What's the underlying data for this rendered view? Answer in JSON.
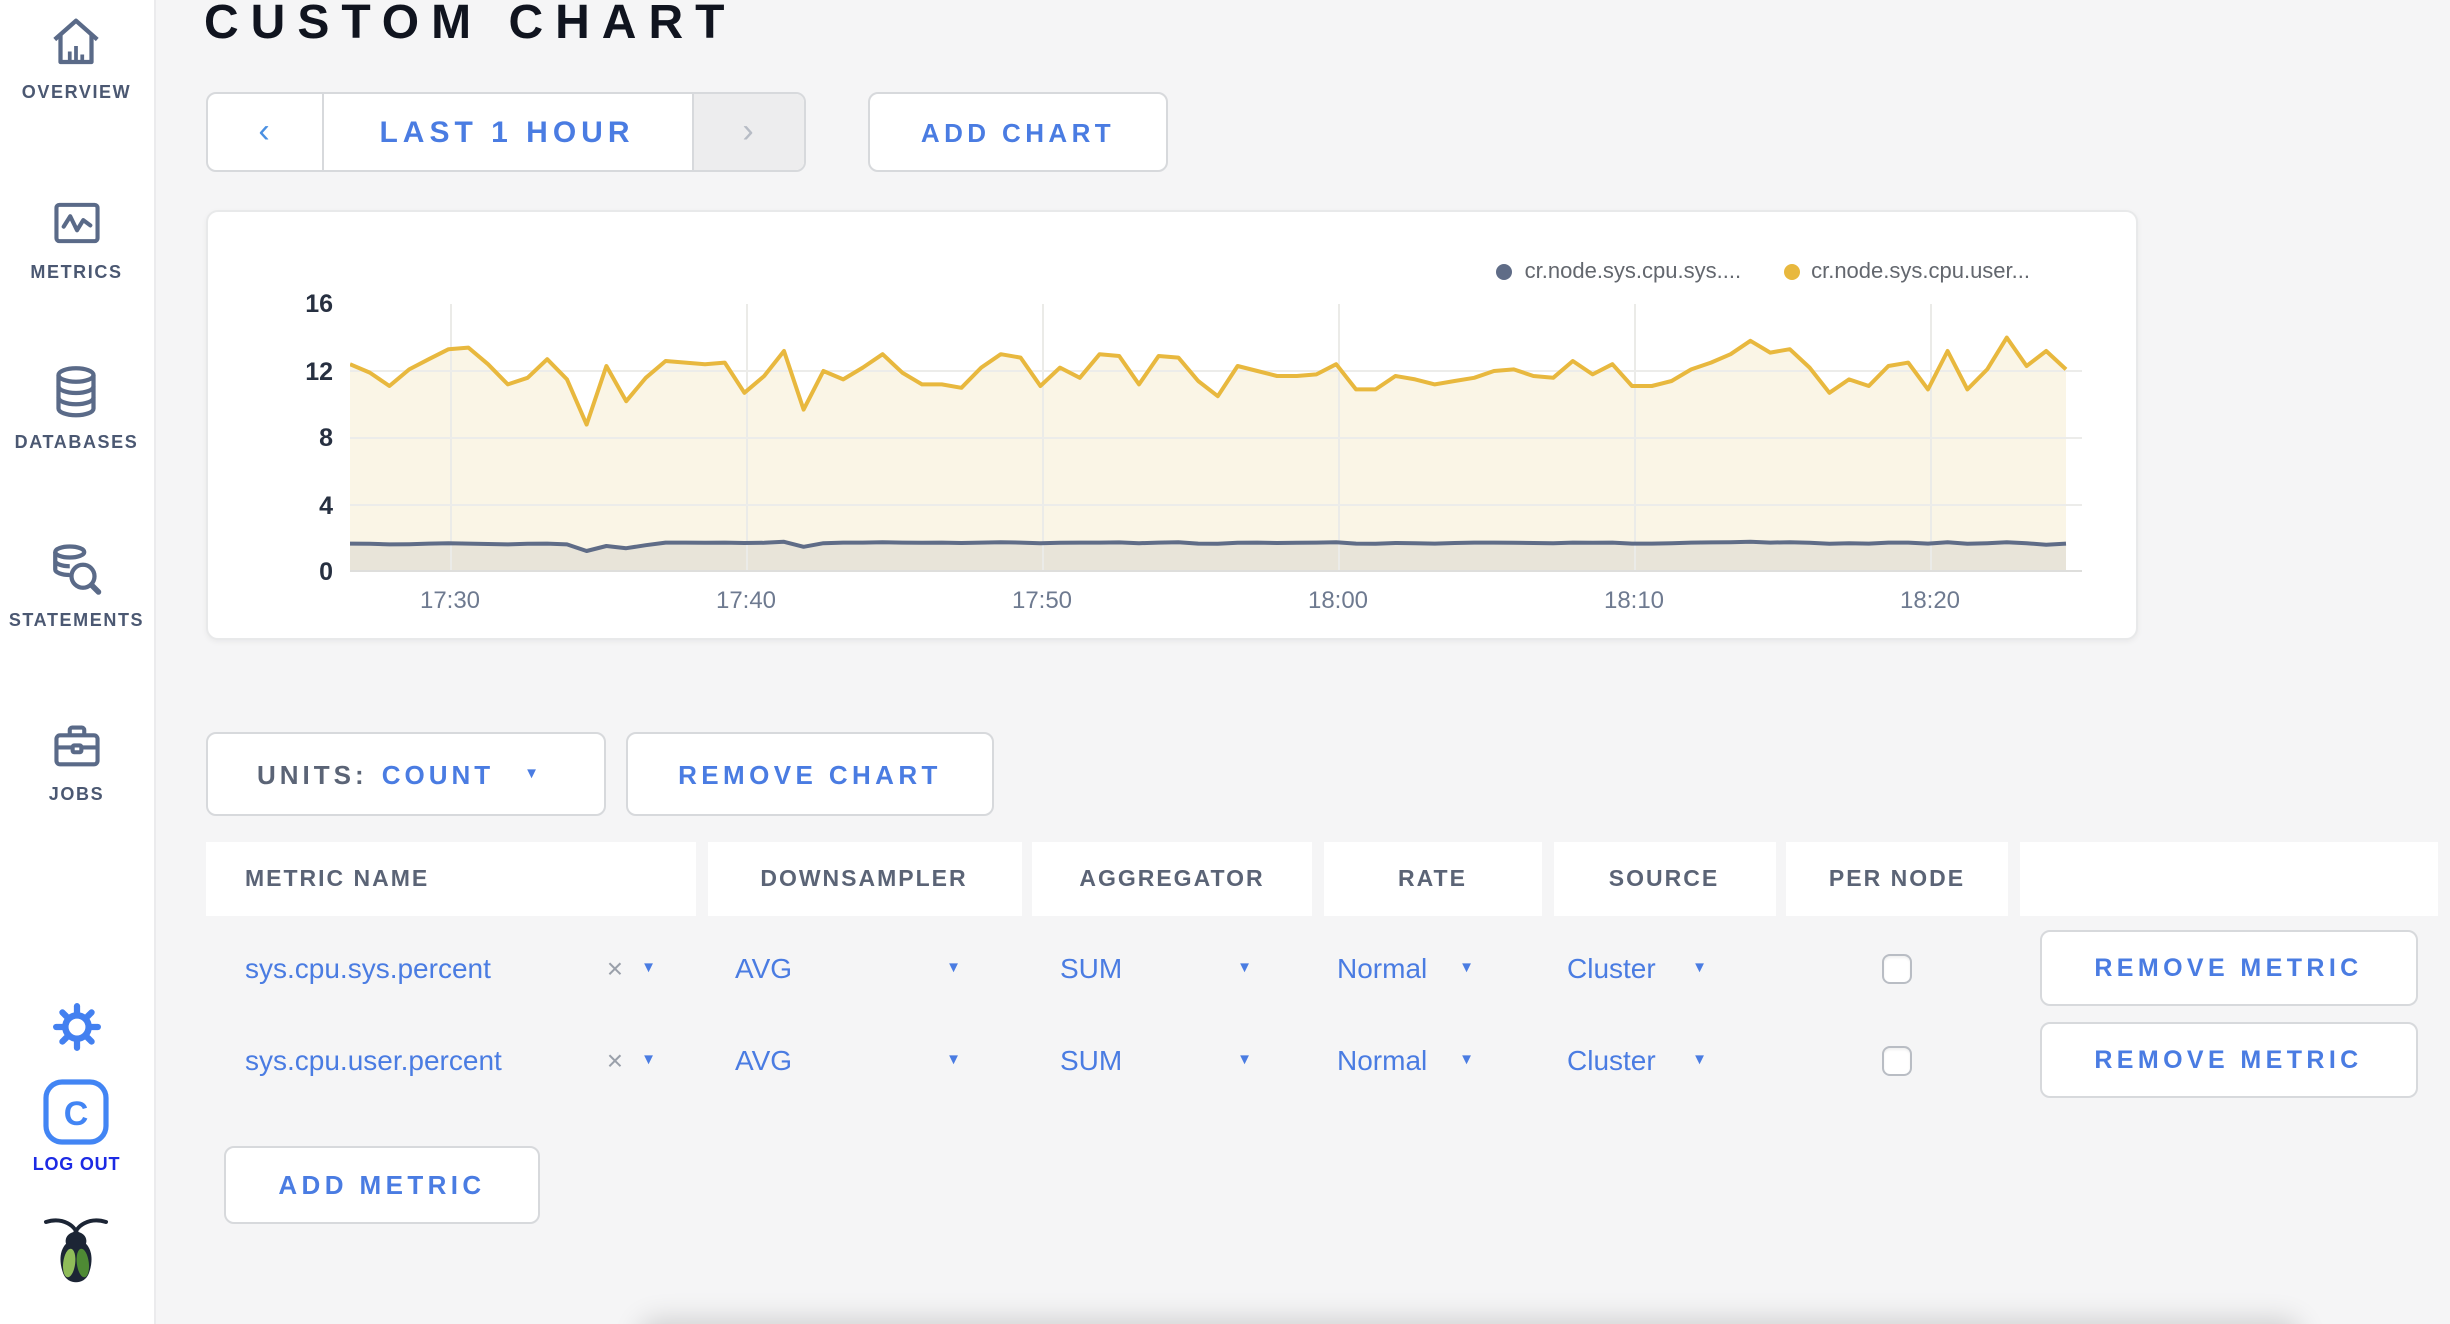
{
  "app": {
    "title": "CUSTOM CHART"
  },
  "sidebar": {
    "items": [
      {
        "label": "OVERVIEW",
        "icon": "home-icon"
      },
      {
        "label": "METRICS",
        "icon": "metrics-icon"
      },
      {
        "label": "DATABASES",
        "icon": "databases-icon"
      },
      {
        "label": "STATEMENTS",
        "icon": "statements-icon"
      },
      {
        "label": "JOBS",
        "icon": "jobs-icon"
      }
    ],
    "logout_label": "LOG OUT"
  },
  "toolbar": {
    "prev_arrow": "‹",
    "time_range_label": "LAST 1 HOUR",
    "next_arrow": "›",
    "add_chart_label": "ADD CHART"
  },
  "chart_controls": {
    "units_label": "UNITS:",
    "units_value": "COUNT",
    "remove_chart_label": "REMOVE CHART",
    "add_metric_label": "ADD METRIC",
    "remove_metric_label": "REMOVE METRIC"
  },
  "table": {
    "headers": [
      "METRIC NAME",
      "DOWNSAMPLER",
      "AGGREGATOR",
      "RATE",
      "SOURCE",
      "PER NODE",
      ""
    ],
    "clear_glyph": "×",
    "rows": [
      {
        "metric": "sys.cpu.sys.percent",
        "downsampler": "AVG",
        "aggregator": "SUM",
        "rate": "Normal",
        "source": "Cluster",
        "per_node": false
      },
      {
        "metric": "sys.cpu.user.percent",
        "downsampler": "AVG",
        "aggregator": "SUM",
        "rate": "Normal",
        "source": "Cluster",
        "per_node": false
      }
    ]
  },
  "chart_data": {
    "type": "line",
    "title": "",
    "xlabel": "",
    "ylabel": "",
    "ylim": [
      0,
      16
    ],
    "y_ticks": [
      0,
      4,
      8,
      12,
      16
    ],
    "x_ticks": [
      "17:30",
      "17:40",
      "17:50",
      "18:00",
      "18:10",
      "18:20"
    ],
    "x_range": [
      "17:26.5",
      "18:24.5"
    ],
    "grid": true,
    "legend_position": "top-right",
    "legend": [
      {
        "name": "cr.node.sys.cpu.sys....",
        "color": "#5f6c87"
      },
      {
        "name": "cr.node.sys.cpu.user...",
        "color": "#e8b83e"
      }
    ],
    "series": [
      {
        "name": "cr.node.sys.cpu.sys....",
        "color": "#5f6c87",
        "fill": "#e8e4d9",
        "values": [
          1.7,
          1.68,
          1.65,
          1.66,
          1.7,
          1.72,
          1.7,
          1.67,
          1.65,
          1.68,
          1.7,
          1.65,
          1.25,
          1.55,
          1.42,
          1.6,
          1.75,
          1.76,
          1.74,
          1.75,
          1.73,
          1.74,
          1.8,
          1.5,
          1.72,
          1.76,
          1.75,
          1.78,
          1.76,
          1.74,
          1.75,
          1.73,
          1.76,
          1.78,
          1.75,
          1.72,
          1.74,
          1.76,
          1.75,
          1.77,
          1.72,
          1.75,
          1.78,
          1.7,
          1.68,
          1.74,
          1.76,
          1.73,
          1.74,
          1.75,
          1.78,
          1.7,
          1.68,
          1.73,
          1.72,
          1.7,
          1.73,
          1.75,
          1.76,
          1.74,
          1.73,
          1.72,
          1.76,
          1.74,
          1.76,
          1.7,
          1.69,
          1.72,
          1.75,
          1.77,
          1.78,
          1.8,
          1.76,
          1.78,
          1.74,
          1.68,
          1.72,
          1.7,
          1.75,
          1.76,
          1.7,
          1.78,
          1.68,
          1.72,
          1.78,
          1.72,
          1.62,
          1.7
        ]
      },
      {
        "name": "cr.node.sys.cpu.user...",
        "color": "#e8b83e",
        "fill": "#faf5e6",
        "values": [
          12.4,
          11.9,
          11.1,
          12.1,
          12.7,
          13.3,
          13.4,
          12.4,
          11.2,
          11.6,
          12.7,
          11.5,
          8.8,
          12.3,
          10.2,
          11.6,
          12.6,
          12.5,
          12.4,
          12.5,
          10.7,
          11.7,
          13.2,
          9.7,
          12.0,
          11.5,
          12.2,
          13.0,
          11.9,
          11.2,
          11.2,
          11.0,
          12.2,
          13.0,
          12.8,
          11.1,
          12.2,
          11.6,
          13.0,
          12.9,
          11.2,
          12.9,
          12.8,
          11.4,
          10.5,
          12.3,
          12.0,
          11.7,
          11.7,
          11.8,
          12.4,
          10.9,
          10.9,
          11.7,
          11.5,
          11.2,
          11.4,
          11.6,
          12.0,
          12.1,
          11.7,
          11.6,
          12.6,
          11.8,
          12.4,
          11.1,
          11.1,
          11.4,
          12.1,
          12.5,
          13.0,
          13.8,
          13.1,
          13.3,
          12.2,
          10.7,
          11.5,
          11.1,
          12.3,
          12.5,
          10.9,
          13.2,
          10.9,
          12.1,
          14.0,
          12.3,
          13.2,
          12.1
        ]
      }
    ]
  },
  "colors": {
    "accent_blue": "#4a7ce2",
    "logout_blue": "#1c2ae4",
    "icon_slate": "#5a6a88",
    "series_yellow": "#e8b83e",
    "series_gray": "#5f6c87",
    "yellow_fill": "#faf5e6",
    "gray_fill": "#e8e4d9",
    "page_bg": "#f5f5f6"
  }
}
